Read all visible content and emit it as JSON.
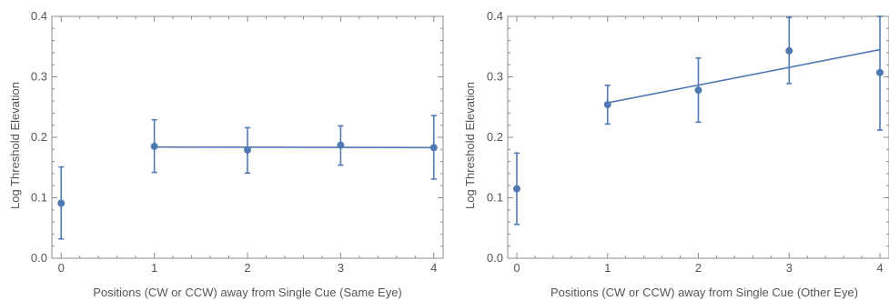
{
  "colors": {
    "series": "#5079b4",
    "frame": "#8c8c8c",
    "text": "#555555"
  },
  "chart_data": [
    {
      "type": "scatter",
      "title": "",
      "xlabel": "Positions (CW or CCW) away from Single Cue (Same Eye)",
      "ylabel": "Log Threshold Elevation",
      "xlim": [
        -0.1,
        4.1
      ],
      "ylim": [
        0.0,
        0.4
      ],
      "x_ticks": [
        "0",
        "1",
        "2",
        "3",
        "4"
      ],
      "y_ticks": [
        "0.0",
        "0.1",
        "0.2",
        "0.3",
        "0.4"
      ],
      "grid": false,
      "legend": "none",
      "points": [
        {
          "x": 0,
          "y": 0.091,
          "err_low": 0.032,
          "err_high": 0.151
        },
        {
          "x": 1,
          "y": 0.185,
          "err_low": 0.142,
          "err_high": 0.229
        },
        {
          "x": 2,
          "y": 0.179,
          "err_low": 0.141,
          "err_high": 0.216
        },
        {
          "x": 3,
          "y": 0.187,
          "err_low": 0.154,
          "err_high": 0.219
        },
        {
          "x": 4,
          "y": 0.183,
          "err_low": 0.131,
          "err_high": 0.236
        }
      ],
      "fit_line": {
        "x": [
          1,
          4
        ],
        "y": [
          0.184,
          0.183
        ]
      }
    },
    {
      "type": "scatter",
      "title": "",
      "xlabel": "Positions (CW or CCW) away from Single Cue (Other Eye)",
      "ylabel": "Log Threshold Elevation",
      "xlim": [
        -0.1,
        4.1
      ],
      "ylim": [
        0.0,
        0.4
      ],
      "x_ticks": [
        "0",
        "1",
        "2",
        "3",
        "4"
      ],
      "y_ticks": [
        "0.0",
        "0.1",
        "0.2",
        "0.3",
        "0.4"
      ],
      "grid": false,
      "legend": "none",
      "points": [
        {
          "x": 0,
          "y": 0.115,
          "err_low": 0.056,
          "err_high": 0.174
        },
        {
          "x": 1,
          "y": 0.254,
          "err_low": 0.222,
          "err_high": 0.286
        },
        {
          "x": 2,
          "y": 0.278,
          "err_low": 0.225,
          "err_high": 0.331
        },
        {
          "x": 3,
          "y": 0.343,
          "err_low": 0.289,
          "err_high": 0.398
        },
        {
          "x": 4,
          "y": 0.307,
          "err_low": 0.212,
          "err_high": 0.4
        }
      ],
      "fit_line": {
        "x": [
          1,
          4
        ],
        "y": [
          0.257,
          0.345
        ]
      }
    }
  ]
}
